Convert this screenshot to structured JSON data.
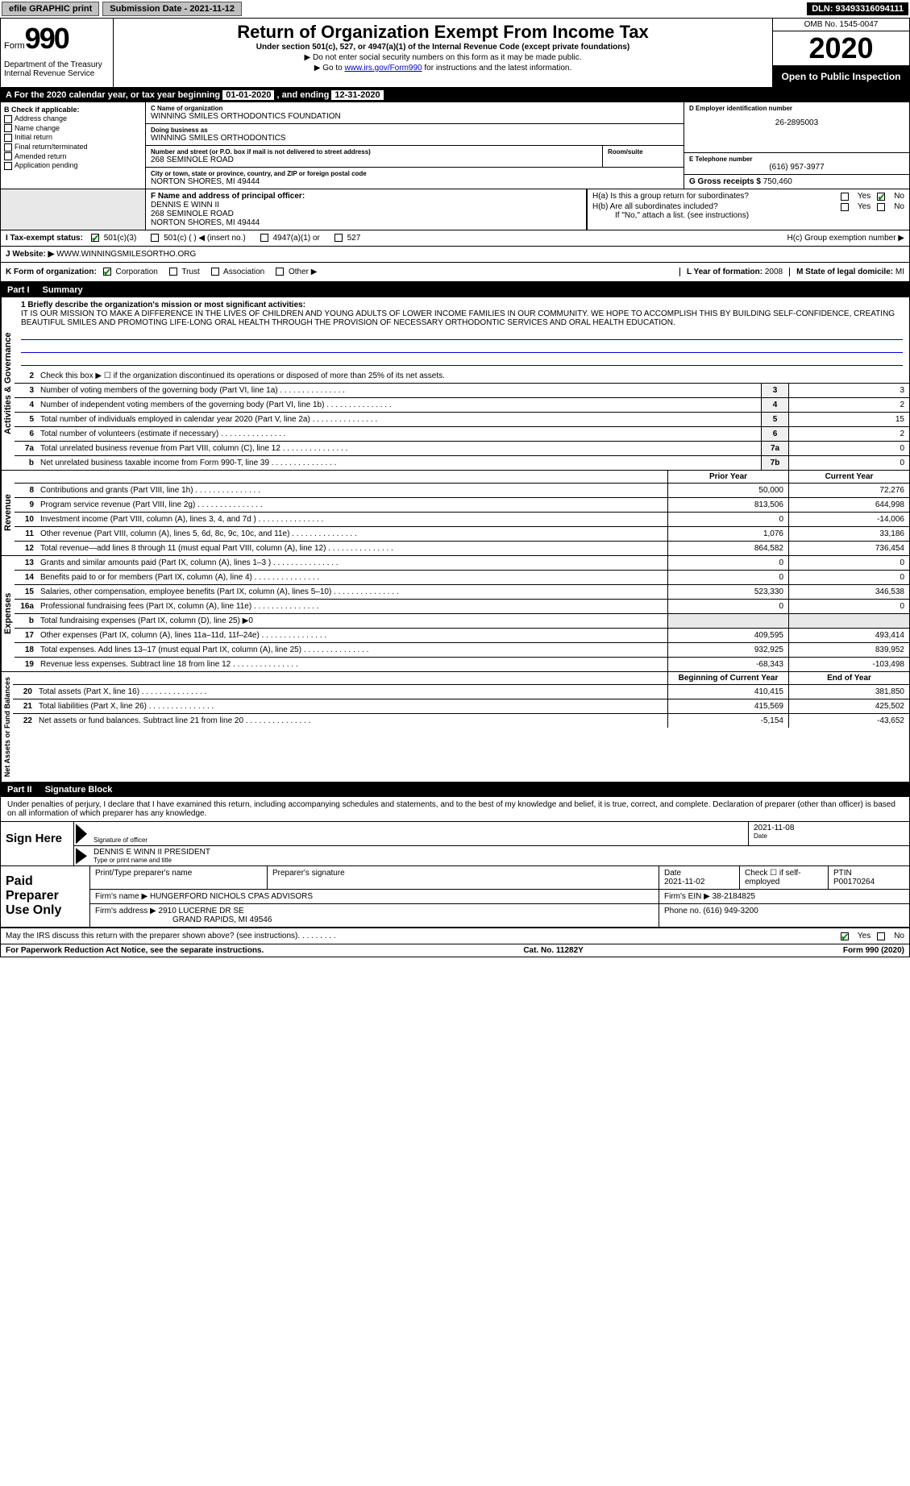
{
  "topbar": {
    "efile": "efile GRAPHIC print",
    "submission_label": "Submission Date - 2021-11-12",
    "dln": "DLN: 93493316094111"
  },
  "header": {
    "form_prefix": "Form",
    "form_num": "990",
    "dept": "Department of the Treasury\nInternal Revenue Service",
    "title": "Return of Organization Exempt From Income Tax",
    "subtitle": "Under section 501(c), 527, or 4947(a)(1) of the Internal Revenue Code (except private foundations)",
    "note1": "▶ Do not enter social security numbers on this form as it may be made public.",
    "note2_pre": "▶ Go to ",
    "note2_link": "www.irs.gov/Form990",
    "note2_post": " for instructions and the latest information.",
    "omb": "OMB No. 1545-0047",
    "year": "2020",
    "open": "Open to Public Inspection"
  },
  "periodA": {
    "text_pre": "A For the 2020 calendar year, or tax year beginning ",
    "begin": "01-01-2020",
    "mid": " , and ending ",
    "end": "12-31-2020"
  },
  "B": {
    "label": "B Check if applicable:",
    "items": [
      "Address change",
      "Name change",
      "Initial return",
      "Final return/terminated",
      "Amended return",
      "Application pending"
    ]
  },
  "C": {
    "name_lbl": "C Name of organization",
    "name": "WINNING SMILES ORTHODONTICS FOUNDATION",
    "dba_lbl": "Doing business as",
    "dba": "WINNING SMILES ORTHODONTICS",
    "addr_lbl": "Number and street (or P.O. box if mail is not delivered to street address)",
    "room_lbl": "Room/suite",
    "addr": "268 SEMINOLE ROAD",
    "city_lbl": "City or town, state or province, country, and ZIP or foreign postal code",
    "city": "NORTON SHORES, MI  49444"
  },
  "D": {
    "lbl": "D Employer identification number",
    "val": "26-2895003"
  },
  "E": {
    "lbl": "E Telephone number",
    "val": "(616) 957-3977"
  },
  "G": {
    "lbl": "G Gross receipts $",
    "val": "750,460"
  },
  "F": {
    "lbl": "F  Name and address of principal officer:",
    "name": "DENNIS E WINN II",
    "addr1": "268 SEMINOLE ROAD",
    "addr2": "NORTON SHORES, MI  49444"
  },
  "H": {
    "a": "H(a)  Is this a group return for subordinates?",
    "a_no": true,
    "b": "H(b)  Are all subordinates included?",
    "b_note": "If \"No,\" attach a list. (see instructions)",
    "c": "H(c)  Group exemption number ▶"
  },
  "I": {
    "lbl": "I   Tax-exempt status:",
    "opts": [
      "501(c)(3)",
      "501(c) (   ) ◀ (insert no.)",
      "4947(a)(1) or",
      "527"
    ],
    "checked": 0
  },
  "J": {
    "lbl": "J   Website: ▶",
    "val": "WWW.WINNINGSMILESORTHO.ORG"
  },
  "K": {
    "lbl": "K Form of organization:",
    "opts": [
      "Corporation",
      "Trust",
      "Association",
      "Other ▶"
    ],
    "checked": 0
  },
  "L": {
    "lbl": "L Year of formation:",
    "val": "2008"
  },
  "M": {
    "lbl": "M State of legal domicile:",
    "val": "MI"
  },
  "partI": {
    "num": "Part I",
    "title": "Summary"
  },
  "mission": {
    "lbl": "1   Briefly describe the organization's mission or most significant activities:",
    "text": "IT IS OUR MISSION TO MAKE A DIFFERENCE IN THE LIVES OF CHILDREN AND YOUNG ADULTS OF LOWER INCOME FAMILIES IN OUR COMMUNITY. WE HOPE TO ACCOMPLISH THIS BY BUILDING SELF-CONFIDENCE, CREATING BEAUTIFUL SMILES AND PROMOTING LIFE-LONG ORAL HEALTH THROUGH THE PROVISION OF NECESSARY ORTHODONTIC SERVICES AND ORAL HEALTH EDUCATION."
  },
  "gov": {
    "tab": "Activities & Governance",
    "l2": "Check this box ▶ ☐ if the organization discontinued its operations or disposed of more than 25% of its net assets.",
    "rows": [
      {
        "n": "3",
        "d": "Number of voting members of the governing body (Part VI, line 1a)",
        "box": "3",
        "v": "3"
      },
      {
        "n": "4",
        "d": "Number of independent voting members of the governing body (Part VI, line 1b)",
        "box": "4",
        "v": "2"
      },
      {
        "n": "5",
        "d": "Total number of individuals employed in calendar year 2020 (Part V, line 2a)",
        "box": "5",
        "v": "15"
      },
      {
        "n": "6",
        "d": "Total number of volunteers (estimate if necessary)",
        "box": "6",
        "v": "2"
      },
      {
        "n": "7a",
        "d": "Total unrelated business revenue from Part VIII, column (C), line 12",
        "box": "7a",
        "v": "0"
      },
      {
        "n": "b",
        "d": "Net unrelated business taxable income from Form 990-T, line 39",
        "box": "7b",
        "v": "0"
      }
    ]
  },
  "rev": {
    "tab": "Revenue",
    "hdr_prior": "Prior Year",
    "hdr_curr": "Current Year",
    "rows": [
      {
        "n": "8",
        "d": "Contributions and grants (Part VIII, line 1h)",
        "p": "50,000",
        "c": "72,276"
      },
      {
        "n": "9",
        "d": "Program service revenue (Part VIII, line 2g)",
        "p": "813,506",
        "c": "644,998"
      },
      {
        "n": "10",
        "d": "Investment income (Part VIII, column (A), lines 3, 4, and 7d )",
        "p": "0",
        "c": "-14,006"
      },
      {
        "n": "11",
        "d": "Other revenue (Part VIII, column (A), lines 5, 6d, 8c, 9c, 10c, and 11e)",
        "p": "1,076",
        "c": "33,186"
      },
      {
        "n": "12",
        "d": "Total revenue—add lines 8 through 11 (must equal Part VIII, column (A), line 12)",
        "p": "864,582",
        "c": "736,454"
      }
    ]
  },
  "exp": {
    "tab": "Expenses",
    "rows": [
      {
        "n": "13",
        "d": "Grants and similar amounts paid (Part IX, column (A), lines 1–3 )",
        "p": "0",
        "c": "0"
      },
      {
        "n": "14",
        "d": "Benefits paid to or for members (Part IX, column (A), line 4)",
        "p": "0",
        "c": "0"
      },
      {
        "n": "15",
        "d": "Salaries, other compensation, employee benefits (Part IX, column (A), lines 5–10)",
        "p": "523,330",
        "c": "346,538"
      },
      {
        "n": "16a",
        "d": "Professional fundraising fees (Part IX, column (A), line 11e)",
        "p": "0",
        "c": "0"
      },
      {
        "n": "b",
        "d": "Total fundraising expenses (Part IX, column (D), line 25) ▶0",
        "p": "",
        "c": "",
        "noval": true
      },
      {
        "n": "17",
        "d": "Other expenses (Part IX, column (A), lines 11a–11d, 11f–24e)",
        "p": "409,595",
        "c": "493,414"
      },
      {
        "n": "18",
        "d": "Total expenses. Add lines 13–17 (must equal Part IX, column (A), line 25)",
        "p": "932,925",
        "c": "839,952"
      },
      {
        "n": "19",
        "d": "Revenue less expenses. Subtract line 18 from line 12",
        "p": "-68,343",
        "c": "-103,498"
      }
    ]
  },
  "net": {
    "tab": "Net Assets or Fund Balances",
    "hdr_beg": "Beginning of Current Year",
    "hdr_end": "End of Year",
    "rows": [
      {
        "n": "20",
        "d": "Total assets (Part X, line 16)",
        "p": "410,415",
        "c": "381,850"
      },
      {
        "n": "21",
        "d": "Total liabilities (Part X, line 26)",
        "p": "415,569",
        "c": "425,502"
      },
      {
        "n": "22",
        "d": "Net assets or fund balances. Subtract line 21 from line 20",
        "p": "-5,154",
        "c": "-43,652"
      }
    ]
  },
  "partII": {
    "num": "Part II",
    "title": "Signature Block"
  },
  "sig": {
    "intro": "Under penalties of perjury, I declare that I have examined this return, including accompanying schedules and statements, and to the best of my knowledge and belief, it is true, correct, and complete. Declaration of preparer (other than officer) is based on all information of which preparer has any knowledge.",
    "here": "Sign Here",
    "sig_lbl": "Signature of officer",
    "date_lbl": "Date",
    "date": "2021-11-08",
    "name": "DENNIS E WINN II  PRESIDENT",
    "name_lbl": "Type or print name and title"
  },
  "prep": {
    "lbl": "Paid Preparer Use Only",
    "r1": {
      "a": "Print/Type preparer's name",
      "b": "Preparer's signature",
      "c": "Date",
      "cval": "2021-11-02",
      "d": "Check ☐ if self-employed",
      "e": "PTIN",
      "eval": "P00170264"
    },
    "r2": {
      "a": "Firm's name    ▶",
      "aval": "HUNGERFORD NICHOLS CPAS ADVISORS",
      "b": "Firm's EIN ▶",
      "bval": "38-2184825"
    },
    "r3": {
      "a": "Firm's address ▶",
      "aval": "2910 LUCERNE DR SE",
      "a2": "GRAND RAPIDS, MI  49546",
      "b": "Phone no.",
      "bval": "(616) 949-3200"
    }
  },
  "discuss": {
    "q": "May the IRS discuss this return with the preparer shown above? (see instructions)",
    "yes": true
  },
  "footer": {
    "l": "For Paperwork Reduction Act Notice, see the separate instructions.",
    "m": "Cat. No. 11282Y",
    "r": "Form 990 (2020)"
  }
}
